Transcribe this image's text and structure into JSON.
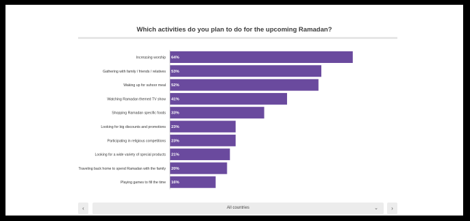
{
  "colors": {
    "bar": "#6a4a9e",
    "background": "#ffffff",
    "frame": "#000000"
  },
  "chart_data": {
    "type": "bar",
    "orientation": "horizontal",
    "title": "Which activities do you plan to do for the upcoming Ramadan?",
    "categories": [
      "Increasing worship",
      "Gathering with family / friends / relatives",
      "Waking up for suhoor meal",
      "Watching Ramadan themed TV show",
      "Shopping Ramadan specific foods",
      "Looking for big discounts and promotions",
      "Participating in religious competitions",
      "Looking for a wide variety of special products",
      "Traveling back home to spend Ramadan with the family",
      "Playing games to fill the time"
    ],
    "values": [
      64,
      53,
      52,
      41,
      33,
      23,
      23,
      21,
      20,
      16
    ],
    "value_labels": [
      "64%",
      "53%",
      "52%",
      "41%",
      "33%",
      "23%",
      "23%",
      "21%",
      "20%",
      "16%"
    ],
    "unit": "%",
    "grid": false,
    "legend": "none"
  },
  "controls": {
    "prev_icon": "‹",
    "next_icon": "›",
    "selector_value": "All countries",
    "selector_icon": "chevron-down-icon"
  }
}
